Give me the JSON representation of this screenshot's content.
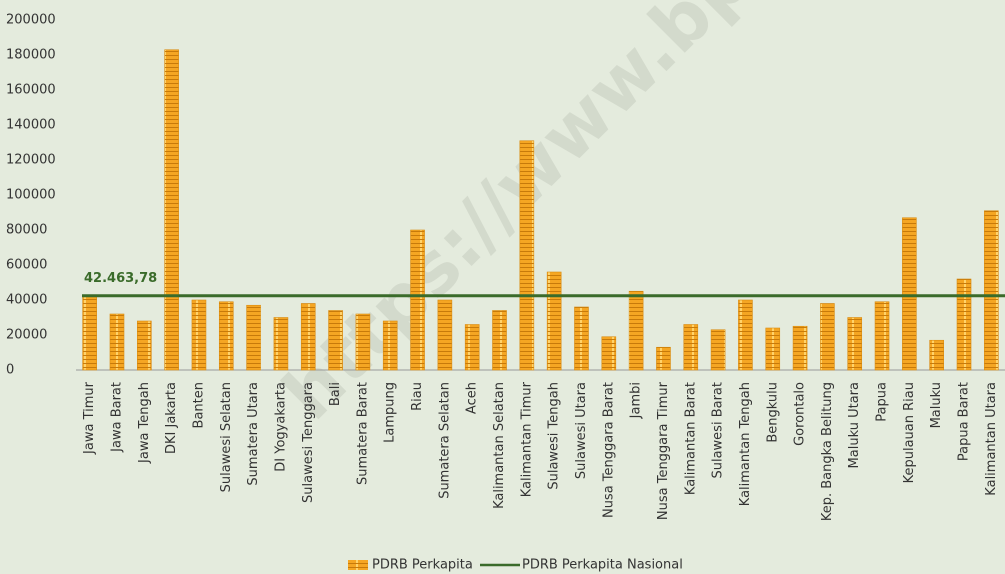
{
  "chart_data": {
    "type": "bar",
    "watermark": "https://www.bp",
    "categories": [
      "Jawa Timur",
      "Jawa Barat",
      "Jawa Tengah",
      "DKI Jakarta",
      "Banten",
      "Sulawesi Selatan",
      "Sumatera Utara",
      "DI Yogyakarta",
      "Sulawesi Tenggara",
      "Bali",
      "Sumatera Barat",
      "Lampung",
      "Riau",
      "Sumatera Selatan",
      "Aceh",
      "Kalimantan Selatan",
      "Kalimantan Timur",
      "Sulawesi Tengah",
      "Sulawesi Utara",
      "Nusa Tenggara Barat",
      "Jambi",
      "Nusa Tenggara Timur",
      "Kalimantan Barat",
      "Sulawesi Barat",
      "Kalimantan Tengah",
      "Bengkulu",
      "Gorontalo",
      "Kep. Bangka Belitung",
      "Maluku Utara",
      "Papua",
      "Kepulauan Riau",
      "Maluku",
      "Papua Barat",
      "Kalimantan Utara"
    ],
    "series": [
      {
        "name": "PDRB Perkapita",
        "color": "#f5a623",
        "values": [
          42000,
          32000,
          28000,
          183000,
          40000,
          39000,
          37000,
          30000,
          38000,
          34000,
          32000,
          28000,
          80000,
          40000,
          26000,
          34000,
          131000,
          56000,
          36000,
          19000,
          45000,
          13000,
          26000,
          23000,
          40000,
          24000,
          25000,
          38000,
          30000,
          39000,
          87000,
          17000,
          52000,
          91000
        ]
      }
    ],
    "reference_line": {
      "name": "PDRB Perkapita Nasional",
      "value": 42463.78,
      "value_label": "42.463,78",
      "color": "#3a6b2a"
    },
    "ylim": [
      0,
      200000
    ],
    "yticks": [
      0,
      20000,
      40000,
      60000,
      80000,
      100000,
      120000,
      140000,
      160000,
      180000,
      200000
    ],
    "legend": "bottom"
  }
}
